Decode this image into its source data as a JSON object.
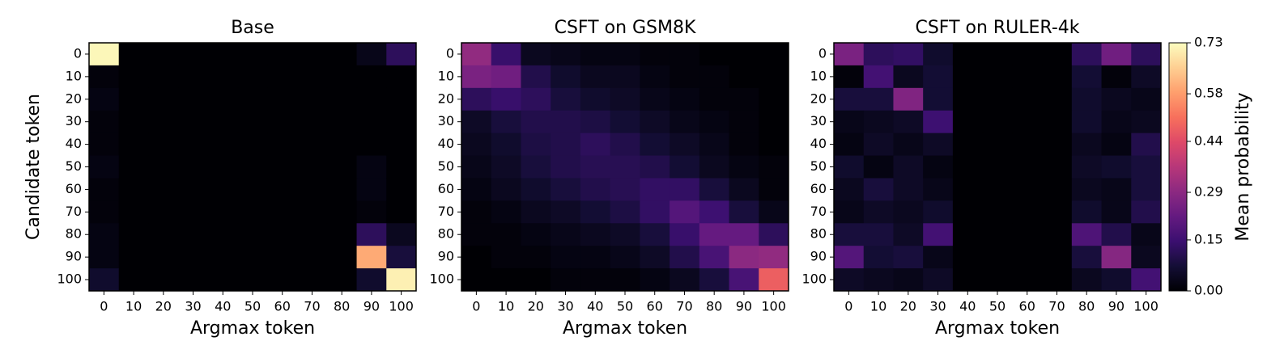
{
  "chart_data": [
    {
      "type": "heatmap",
      "title": "Base",
      "x_label": "Argmax token",
      "y_label": "Candidate token",
      "x_categories": [
        0,
        10,
        20,
        30,
        40,
        50,
        60,
        70,
        80,
        90,
        100
      ],
      "y_categories": [
        0,
        10,
        20,
        30,
        40,
        50,
        60,
        70,
        80,
        90,
        100
      ],
      "values": [
        [
          0.72,
          0,
          0,
          0,
          0,
          0,
          0,
          0,
          0,
          0.03,
          0.12
        ],
        [
          0.01,
          0,
          0,
          0,
          0,
          0,
          0,
          0,
          0,
          0,
          0
        ],
        [
          0.02,
          0,
          0,
          0,
          0,
          0,
          0,
          0,
          0,
          0,
          0
        ],
        [
          0.01,
          0,
          0,
          0,
          0,
          0,
          0,
          0,
          0,
          0,
          0
        ],
        [
          0.01,
          0,
          0,
          0,
          0,
          0,
          0,
          0,
          0,
          0,
          0
        ],
        [
          0.02,
          0,
          0,
          0,
          0,
          0,
          0,
          0,
          0,
          0.02,
          0
        ],
        [
          0.01,
          0,
          0,
          0,
          0,
          0,
          0,
          0,
          0,
          0.02,
          0
        ],
        [
          0.01,
          0,
          0,
          0,
          0,
          0,
          0,
          0,
          0,
          0.01,
          0
        ],
        [
          0.02,
          0,
          0,
          0,
          0,
          0,
          0,
          0,
          0,
          0.12,
          0.04
        ],
        [
          0.02,
          0,
          0,
          0,
          0,
          0,
          0,
          0,
          0,
          0.6,
          0.08
        ],
        [
          0.06,
          0,
          0,
          0,
          0,
          0,
          0,
          0,
          0,
          0.06,
          0.71
        ]
      ]
    },
    {
      "type": "heatmap",
      "title": "CSFT on GSM8K",
      "x_label": "Argmax token",
      "x_categories": [
        0,
        10,
        20,
        30,
        40,
        50,
        60,
        70,
        80,
        90,
        100
      ],
      "y_categories": [
        0,
        10,
        20,
        30,
        40,
        50,
        60,
        70,
        80,
        90,
        100
      ],
      "values": [
        [
          0.3,
          0.14,
          0.04,
          0.03,
          0.02,
          0.02,
          0.01,
          0.01,
          0,
          0,
          0
        ],
        [
          0.26,
          0.24,
          0.1,
          0.06,
          0.04,
          0.04,
          0.02,
          0.01,
          0.01,
          0,
          0
        ],
        [
          0.12,
          0.14,
          0.12,
          0.08,
          0.06,
          0.05,
          0.03,
          0.02,
          0.01,
          0.01,
          0
        ],
        [
          0.05,
          0.08,
          0.1,
          0.1,
          0.09,
          0.07,
          0.05,
          0.03,
          0.02,
          0.01,
          0
        ],
        [
          0.04,
          0.06,
          0.09,
          0.1,
          0.12,
          0.1,
          0.07,
          0.05,
          0.03,
          0.01,
          0
        ],
        [
          0.03,
          0.05,
          0.08,
          0.1,
          0.11,
          0.11,
          0.1,
          0.07,
          0.04,
          0.02,
          0.01
        ],
        [
          0.02,
          0.04,
          0.06,
          0.08,
          0.1,
          0.11,
          0.13,
          0.13,
          0.08,
          0.04,
          0.01
        ],
        [
          0.01,
          0.02,
          0.04,
          0.05,
          0.07,
          0.09,
          0.13,
          0.19,
          0.15,
          0.08,
          0.03
        ],
        [
          0.01,
          0.01,
          0.02,
          0.03,
          0.04,
          0.05,
          0.08,
          0.14,
          0.22,
          0.22,
          0.12
        ],
        [
          0,
          0.01,
          0.01,
          0.02,
          0.02,
          0.03,
          0.05,
          0.1,
          0.17,
          0.29,
          0.3
        ],
        [
          0,
          0,
          0,
          0.01,
          0.01,
          0.01,
          0.02,
          0.04,
          0.08,
          0.17,
          0.48
        ]
      ]
    },
    {
      "type": "heatmap",
      "title": "CSFT on RULER-4k",
      "x_label": "Argmax token",
      "x_categories": [
        0,
        10,
        20,
        30,
        40,
        50,
        60,
        70,
        80,
        90,
        100
      ],
      "y_categories": [
        0,
        10,
        20,
        30,
        40,
        50,
        60,
        70,
        80,
        90,
        100
      ],
      "values": [
        [
          0.26,
          0.12,
          0.13,
          0.06,
          0,
          0,
          0,
          0,
          0.12,
          0.24,
          0.12
        ],
        [
          0.01,
          0.16,
          0.04,
          0.07,
          0,
          0,
          0,
          0,
          0.07,
          0.01,
          0.05
        ],
        [
          0.08,
          0.08,
          0.27,
          0.07,
          0,
          0,
          0,
          0,
          0.06,
          0.04,
          0.03
        ],
        [
          0.03,
          0.04,
          0.05,
          0.15,
          0,
          0,
          0,
          0,
          0.06,
          0.03,
          0.04
        ],
        [
          0.02,
          0.05,
          0.03,
          0.05,
          0,
          0,
          0,
          0,
          0.04,
          0.02,
          0.1
        ],
        [
          0.06,
          0.02,
          0.05,
          0.02,
          0,
          0,
          0,
          0,
          0.05,
          0.06,
          0.08
        ],
        [
          0.04,
          0.08,
          0.05,
          0.03,
          0,
          0,
          0,
          0,
          0.04,
          0.03,
          0.08
        ],
        [
          0.03,
          0.05,
          0.04,
          0.06,
          0,
          0,
          0,
          0,
          0.06,
          0.03,
          0.1
        ],
        [
          0.08,
          0.08,
          0.05,
          0.16,
          0,
          0,
          0,
          0,
          0.18,
          0.1,
          0.03
        ],
        [
          0.19,
          0.07,
          0.08,
          0.03,
          0,
          0,
          0,
          0,
          0.08,
          0.28,
          0.04
        ],
        [
          0.05,
          0.04,
          0.03,
          0.05,
          0,
          0,
          0,
          0,
          0.04,
          0.06,
          0.16
        ]
      ]
    }
  ],
  "colorbar": {
    "label": "Mean probability",
    "colormap": "magma",
    "lim": [
      0,
      0.73
    ],
    "ticks": [
      {
        "value": 0,
        "label": "0.00"
      },
      0.15,
      0.29,
      0.44,
      0.58,
      0.73
    ]
  }
}
